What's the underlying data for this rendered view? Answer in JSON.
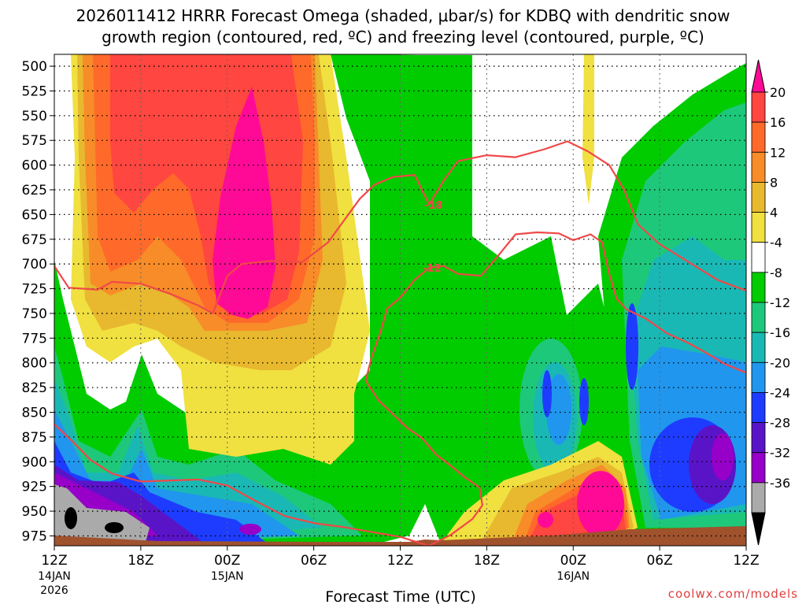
{
  "chart_data": {
    "type": "heatmap",
    "title_line1": "2026011412 HRRR Forecast Omega (shaded, μbar/s) for KDBQ with dendritic snow",
    "title_line2": "growth region (contoured, red, ºC) and freezing level (contoured, purple, ºC)",
    "xlabel": "Forecast Time (UTC)",
    "watermark": "coolwx.com/models",
    "x_ticks": [
      {
        "hour": 0,
        "label": "12Z",
        "sub1": "14JAN",
        "sub2": "2026"
      },
      {
        "hour": 6,
        "label": "18Z",
        "sub1": "",
        "sub2": ""
      },
      {
        "hour": 12,
        "label": "00Z",
        "sub1": "15JAN",
        "sub2": ""
      },
      {
        "hour": 18,
        "label": "06Z",
        "sub1": "",
        "sub2": ""
      },
      {
        "hour": 24,
        "label": "12Z",
        "sub1": "",
        "sub2": ""
      },
      {
        "hour": 30,
        "label": "18Z",
        "sub1": "",
        "sub2": ""
      },
      {
        "hour": 36,
        "label": "00Z",
        "sub1": "16JAN",
        "sub2": ""
      },
      {
        "hour": 42,
        "label": "06Z",
        "sub1": "",
        "sub2": ""
      },
      {
        "hour": 48,
        "label": "12Z",
        "sub1": "",
        "sub2": ""
      }
    ],
    "xlim": [
      0,
      48
    ],
    "y_ticks": [
      500,
      525,
      550,
      575,
      600,
      625,
      650,
      675,
      700,
      725,
      750,
      775,
      800,
      825,
      850,
      875,
      900,
      925,
      950,
      975
    ],
    "ylim": [
      488,
      985
    ],
    "colorbar": {
      "labels": [
        "20",
        "16",
        "12",
        "8",
        "4",
        "-4",
        "-8",
        "-12",
        "-16",
        "-20",
        "-24",
        "-28",
        "-32",
        "-36"
      ],
      "colors": [
        "#ff0a96",
        "#ff4640",
        "#ff6a2a",
        "#f78c28",
        "#e8b82e",
        "#f0e040",
        "#ffffff",
        "#00cc00",
        "#1ec87a",
        "#1ab8b4",
        "#2096ee",
        "#1e3cff",
        "#5a14c8",
        "#9600c8",
        "#aaaaaa",
        "#000000"
      ]
    },
    "contours": [
      {
        "label": "-18",
        "color": "#f04848",
        "label_hour": 26.3,
        "label_p": 640,
        "points": [
          [
            0,
            702
          ],
          [
            1,
            724
          ],
          [
            3,
            726
          ],
          [
            4,
            718
          ],
          [
            6,
            720
          ],
          [
            8,
            730
          ],
          [
            10,
            742
          ],
          [
            11,
            750
          ],
          [
            12,
            712
          ],
          [
            13,
            700
          ],
          [
            15,
            697
          ],
          [
            17.2,
            698
          ],
          [
            19,
            678
          ],
          [
            20.2,
            654
          ],
          [
            21.2,
            634
          ],
          [
            22.2,
            620
          ],
          [
            23.5,
            612
          ],
          [
            25,
            610
          ],
          [
            26,
            640
          ],
          [
            27,
            616
          ],
          [
            28,
            596
          ],
          [
            30,
            590
          ],
          [
            32,
            592
          ],
          [
            34,
            584
          ],
          [
            35.6,
            576
          ],
          [
            37,
            586
          ],
          [
            38.5,
            600
          ],
          [
            39.5,
            624
          ],
          [
            40.5,
            660
          ],
          [
            42,
            680
          ],
          [
            44,
            698
          ],
          [
            46,
            716
          ],
          [
            48,
            727
          ]
        ]
      },
      {
        "label": "-12",
        "color": "#f04848",
        "label_hour": 26.2,
        "label_p": 704,
        "points": [
          [
            0,
            862
          ],
          [
            1.3,
            880
          ],
          [
            2.5,
            898
          ],
          [
            4,
            912
          ],
          [
            6,
            920
          ],
          [
            8,
            919
          ],
          [
            10,
            918
          ],
          [
            12,
            924
          ],
          [
            14,
            940
          ],
          [
            16,
            955
          ],
          [
            18,
            962
          ],
          [
            20,
            966
          ],
          [
            22,
            971
          ],
          [
            24,
            976
          ],
          [
            26,
            985
          ],
          [
            27.5,
            974
          ],
          [
            29,
            958
          ],
          [
            29.7,
            944
          ],
          [
            29.5,
            926
          ],
          [
            28.5,
            916
          ],
          [
            27.5,
            904
          ],
          [
            26.5,
            893
          ],
          [
            25.5,
            876
          ],
          [
            24.5,
            866
          ],
          [
            23.5,
            852
          ],
          [
            22.5,
            838
          ],
          [
            21.6,
            818
          ],
          [
            22,
            795
          ],
          [
            22.6,
            770
          ],
          [
            23.1,
            745
          ],
          [
            24,
            734
          ],
          [
            25,
            716
          ],
          [
            26,
            704
          ],
          [
            27,
            702
          ],
          [
            28,
            710
          ],
          [
            29.6,
            712
          ],
          [
            31,
            688
          ],
          [
            32,
            670
          ],
          [
            33.5,
            668
          ],
          [
            35,
            669
          ],
          [
            36,
            676
          ],
          [
            37.2,
            670
          ],
          [
            38,
            678
          ],
          [
            38.5,
            710
          ],
          [
            39,
            735
          ],
          [
            39.7,
            746
          ],
          [
            41,
            755
          ],
          [
            42.5,
            770
          ],
          [
            44,
            780
          ],
          [
            45,
            788
          ],
          [
            46.5,
            801
          ],
          [
            48,
            810
          ]
        ]
      }
    ]
  }
}
